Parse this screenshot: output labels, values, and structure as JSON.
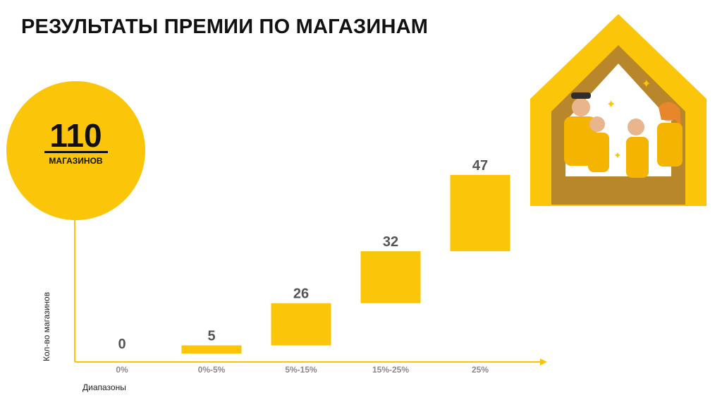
{
  "title": "РЕЗУЛЬТАТЫ ПРЕМИИ ПО МАГАЗИНАМ",
  "badge": {
    "number": "110",
    "label": "МАГАЗИНОВ"
  },
  "colors": {
    "accent": "#FBC60A",
    "axis": "#FBC60A",
    "house_dark": "#B8862B"
  },
  "illustration": "house-with-team-icon",
  "chart_data": {
    "type": "bar",
    "categories": [
      "0%",
      "0%-5%",
      "5%-15%",
      "15%-25%",
      "25%"
    ],
    "values": [
      0,
      5,
      26,
      32,
      47
    ],
    "data_labels": [
      "0",
      "5",
      "26",
      "32",
      "47"
    ],
    "xlabel": "Диапазоны",
    "ylabel": "Кол-во магазинов",
    "style": "waterfall",
    "grid": false,
    "legend": "none"
  }
}
